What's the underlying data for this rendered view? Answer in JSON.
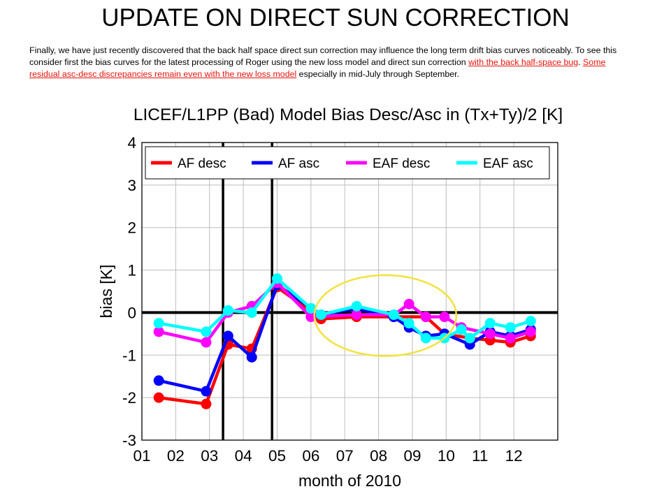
{
  "slide": {
    "title": "UPDATE ON DIRECT SUN CORRECTION",
    "text_part1": "Finally, we have just recently discovered that the back half space direct sun correction may influence the long term drift bias curves noticeably. To see this consider first the bias curves for the latest processing of Roger using the new loss model  and direct sun correction ",
    "text_bug": "with the back half-space bug",
    "text_part2": ". ",
    "text_discrepancy": "Some residual  asc-desc discrepancies remain even with the new loss model",
    "text_part3": " especially in mid-July through September."
  },
  "chart_data": {
    "type": "line",
    "title": "LICEF/L1PP (Bad) Model Bias Desc/Asc in (Tx+Ty)/2 [K]",
    "xlabel": "month of 2010",
    "ylabel": "bias [K]",
    "xlim": [
      1,
      13.3
    ],
    "ylim": [
      -3,
      4
    ],
    "x_ticks": [
      1,
      2,
      3,
      4,
      5,
      6,
      7,
      8,
      9,
      10,
      11,
      12
    ],
    "x_tick_labels": [
      "01",
      "02",
      "03",
      "04",
      "05",
      "06",
      "07",
      "08",
      "09",
      "10",
      "11",
      "12"
    ],
    "y_ticks": [
      -3,
      -2,
      -1,
      0,
      1,
      2,
      3,
      4
    ],
    "y_tick_labels": [
      "-3",
      "-2",
      "-1",
      "0",
      "1",
      "2",
      "3",
      "4"
    ],
    "grid": true,
    "legend_position": "top",
    "reference_lines": {
      "horizontal": [
        0
      ],
      "vertical": [
        3.4,
        4.85
      ]
    },
    "annotations": [
      {
        "type": "ellipse",
        "color": "#f2e23a",
        "center": [
          8.2,
          -0.07
        ],
        "radius": [
          2.1,
          0.95
        ]
      }
    ],
    "series": [
      {
        "name": "AF desc",
        "color": "#ff0000",
        "x": [
          1.5,
          2.9,
          3.55,
          4.25,
          5.0,
          6.3,
          7.35,
          8.45,
          9.4,
          9.95,
          10.7,
          11.3,
          11.9,
          12.5
        ],
        "y": [
          -2.0,
          -2.15,
          -0.75,
          -0.85,
          0.6,
          -0.15,
          -0.1,
          -0.1,
          -0.1,
          -0.5,
          -0.6,
          -0.65,
          -0.7,
          -0.55
        ]
      },
      {
        "name": "AF asc",
        "color": "#0000ff",
        "x": [
          1.5,
          2.9,
          3.55,
          4.25,
          5.0,
          6.3,
          7.35,
          8.45,
          8.9,
          9.4,
          9.95,
          10.7,
          11.3,
          11.9,
          12.5
        ],
        "y": [
          -1.6,
          -1.85,
          -0.55,
          -1.05,
          0.65,
          -0.05,
          0.1,
          -0.1,
          -0.35,
          -0.55,
          -0.5,
          -0.75,
          -0.45,
          -0.55,
          -0.4
        ]
      },
      {
        "name": "EAF desc",
        "color": "#ff00ff",
        "x": [
          1.5,
          2.9,
          3.55,
          4.25,
          5.0,
          6.0,
          7.35,
          8.45,
          8.9,
          9.4,
          9.95,
          10.45,
          11.3,
          11.9,
          12.5
        ],
        "y": [
          -0.45,
          -0.7,
          0.0,
          0.15,
          0.7,
          -0.1,
          -0.05,
          -0.05,
          0.2,
          -0.1,
          -0.1,
          -0.35,
          -0.5,
          -0.6,
          -0.45
        ]
      },
      {
        "name": "EAF asc",
        "color": "#00ffff",
        "x": [
          1.5,
          2.9,
          3.55,
          4.25,
          5.0,
          6.0,
          6.3,
          7.35,
          8.45,
          8.9,
          9.4,
          9.95,
          10.45,
          10.7,
          11.3,
          11.9,
          12.5
        ],
        "y": [
          -0.25,
          -0.45,
          0.05,
          0.0,
          0.8,
          0.1,
          -0.05,
          0.15,
          -0.05,
          -0.25,
          -0.6,
          -0.6,
          -0.4,
          -0.6,
          -0.25,
          -0.35,
          -0.2
        ]
      }
    ]
  }
}
